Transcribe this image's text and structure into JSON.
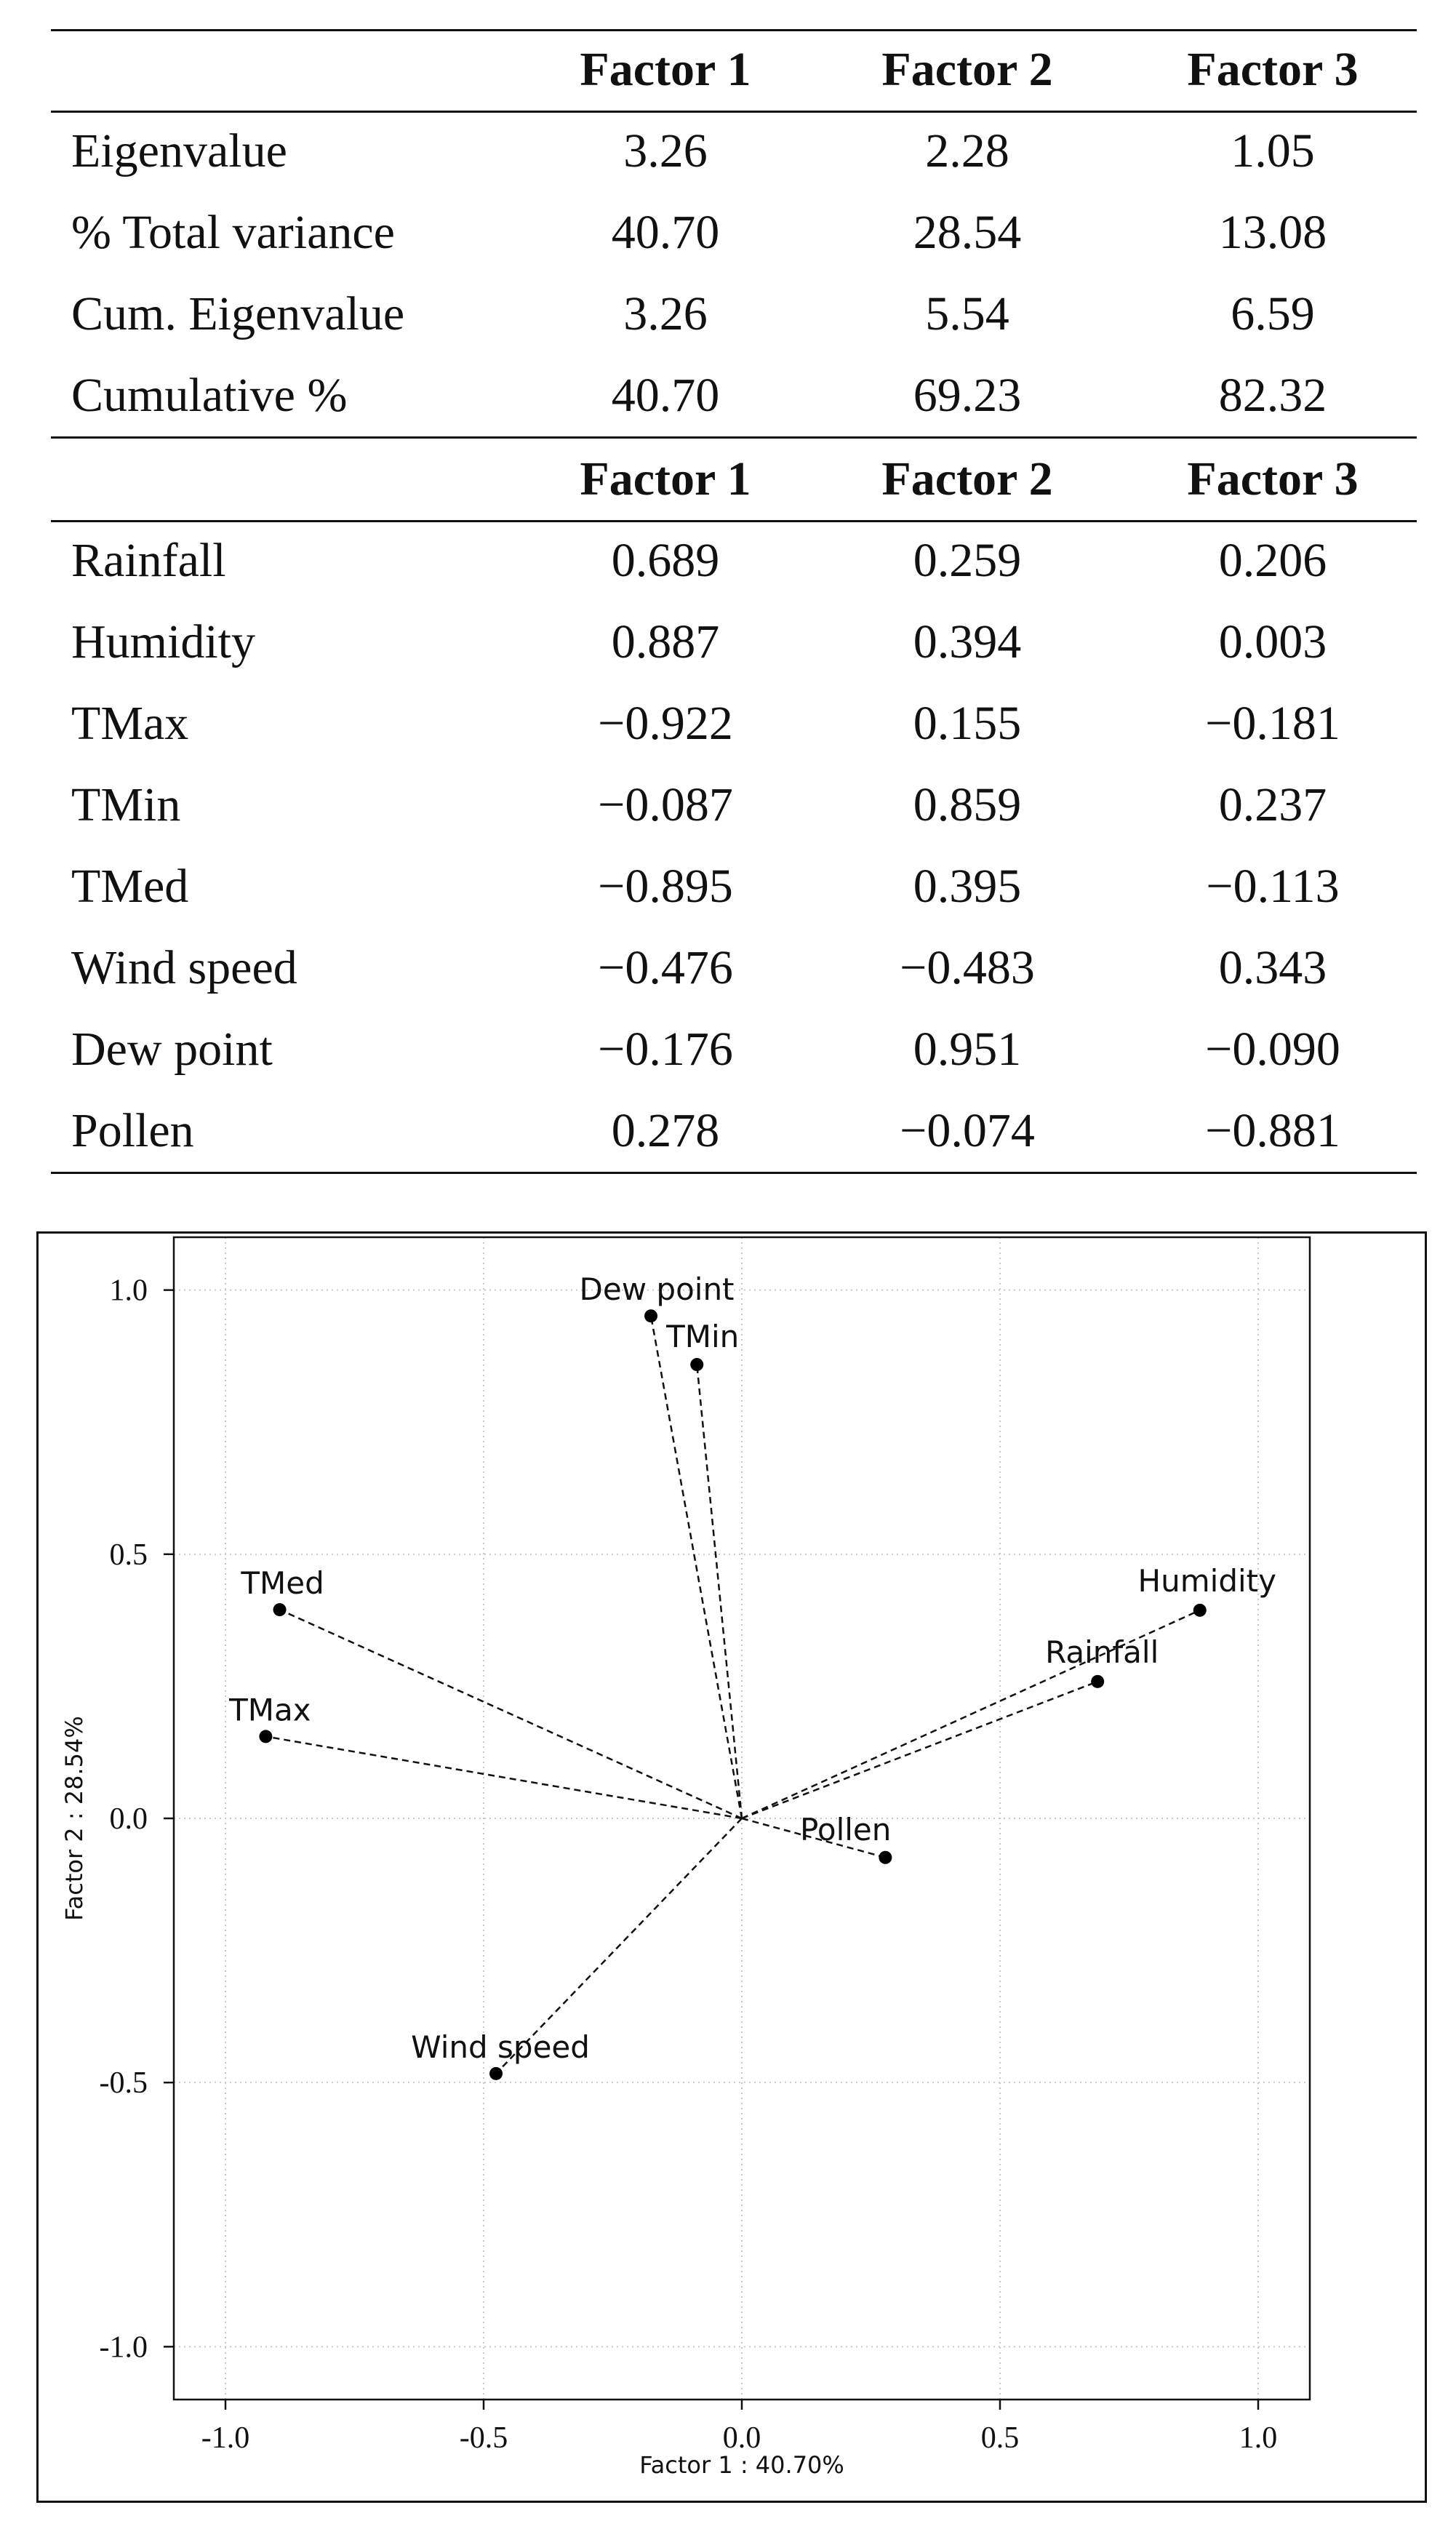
{
  "table": {
    "header_top": [
      "Factor 1",
      "Factor 2",
      "Factor 3"
    ],
    "variance_rows": [
      {
        "label": "Eigenvalue",
        "values": [
          "3.26",
          "2.28",
          "1.05"
        ]
      },
      {
        "label": "% Total variance",
        "values": [
          "40.70",
          "28.54",
          "13.08"
        ]
      },
      {
        "label": "Cum. Eigenvalue",
        "values": [
          "3.26",
          "5.54",
          "6.59"
        ]
      },
      {
        "label": "Cumulative %",
        "values": [
          "40.70",
          "69.23",
          "82.32"
        ]
      }
    ],
    "header_loadings": [
      "Factor 1",
      "Factor 2",
      "Factor 3"
    ],
    "loading_rows": [
      {
        "label": "Rainfall",
        "values": [
          "0.689",
          "0.259",
          "0.206"
        ]
      },
      {
        "label": "Humidity",
        "values": [
          "0.887",
          "0.394",
          "0.003"
        ]
      },
      {
        "label": "TMax",
        "values": [
          "−0.922",
          "0.155",
          "−0.181"
        ]
      },
      {
        "label": "TMin",
        "values": [
          "−0.087",
          "0.859",
          "0.237"
        ]
      },
      {
        "label": "TMed",
        "values": [
          "−0.895",
          "0.395",
          "−0.113"
        ]
      },
      {
        "label": "Wind speed",
        "values": [
          "−0.476",
          "−0.483",
          "0.343"
        ]
      },
      {
        "label": "Dew point",
        "values": [
          "−0.176",
          "0.951",
          "−0.090"
        ]
      },
      {
        "label": "Pollen",
        "values": [
          "0.278",
          "−0.074",
          "−0.881"
        ]
      }
    ]
  },
  "chart_data": {
    "type": "scatter",
    "title": "",
    "xlabel": "Factor 1 :   40.70%",
    "ylabel": "Factor 2 :   28.54%",
    "xlim": [
      -1.1,
      1.1
    ],
    "ylim": [
      -1.1,
      1.1
    ],
    "xticks": [
      -1.0,
      -0.5,
      0.0,
      0.5,
      1.0
    ],
    "xtick_labels": [
      "-1.0",
      "-0.5",
      "0.0",
      "0.5",
      "1.0"
    ],
    "yticks": [
      1.0,
      0.5,
      0.0,
      -0.5,
      -1.0
    ],
    "ytick_labels": [
      "1.0",
      "0.5",
      "0.0",
      "-0.5",
      "-1.0"
    ],
    "grid": "dotted",
    "vectors_from_origin": true,
    "points": [
      {
        "name": "Dew point",
        "x": -0.176,
        "y": 0.951
      },
      {
        "name": "TMin",
        "x": -0.087,
        "y": 0.859
      },
      {
        "name": "TMed",
        "x": -0.895,
        "y": 0.395
      },
      {
        "name": "TMax",
        "x": -0.922,
        "y": 0.155
      },
      {
        "name": "Humidity",
        "x": 0.887,
        "y": 0.394
      },
      {
        "name": "Rainfall",
        "x": 0.689,
        "y": 0.259
      },
      {
        "name": "Pollen",
        "x": 0.278,
        "y": -0.074
      },
      {
        "name": "Wind speed",
        "x": -0.476,
        "y": -0.483
      }
    ]
  }
}
